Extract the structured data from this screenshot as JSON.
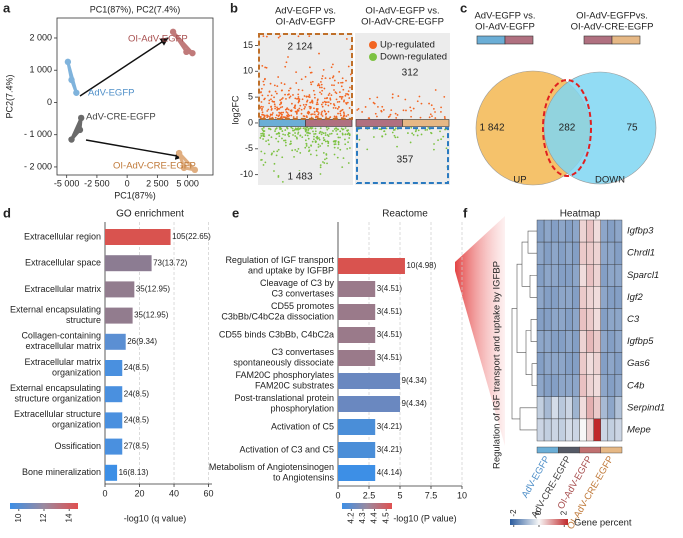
{
  "chart_data": [
    {
      "panel": "a",
      "type": "scatter",
      "title": "PC1(87%), PC2(7.4%)",
      "xlabel": "PC1(87%)",
      "ylabel": "PC2(7.4%)",
      "xlim": [
        -5800,
        7100
      ],
      "ylim": [
        -2250,
        2620
      ],
      "xticks": [
        {
          "value": -5000,
          "label": "-5 000"
        },
        {
          "value": -2500,
          "label": "-2 500"
        },
        0,
        {
          "value": 2500,
          "label": "2 500"
        },
        {
          "value": 5000,
          "label": "5 000"
        }
      ],
      "yticks": [
        {
          "value": -2000,
          "label": "- 2 000"
        },
        {
          "value": -1000,
          "label": "- 1 000"
        },
        0,
        {
          "value": 1000,
          "label": "1 000"
        },
        {
          "value": 2000,
          "label": "2 000"
        }
      ],
      "series": [
        {
          "name": "AdV-EGFP",
          "color": "#7fb3dc",
          "label_color": "#4f8fc8",
          "x": [
            -4900,
            -4600,
            -4200
          ],
          "values": [
            1260,
            700,
            300
          ]
        },
        {
          "name": "OI-AdV-EGFP",
          "color": "#c07a7a",
          "label_color": "#a85050",
          "x": [
            3800,
            4900,
            5400
          ],
          "values": [
            2190,
            1570,
            1530
          ]
        },
        {
          "name": "AdV-CRE-EGFP",
          "color": "#6a6a6a",
          "label_color": "#444444",
          "x": [
            -3800,
            -3900,
            -4600
          ],
          "values": [
            -480,
            -850,
            -1150
          ]
        },
        {
          "name": "OI-AdV-CRE-EGFP",
          "color": "#e0ae80",
          "label_color": "#c07a3a",
          "x": [
            4300,
            4700,
            5600
          ],
          "values": [
            -1570,
            -2030,
            -2090
          ]
        }
      ]
    },
    {
      "panel": "b",
      "type": "volcano",
      "categories": [
        "AdV-EGFP vs.\nOI-AdV-EGFP",
        "OI-AdV-EGFP vs.\nOI-AdV-CRE-EGFP"
      ],
      "ylabel": "log2FC",
      "ylim": [
        -12,
        17.4
      ],
      "yticks": [
        -10,
        -5,
        0,
        5,
        10,
        15
      ],
      "series": [
        {
          "name": "Up-regulated",
          "color": "#f26522",
          "values": [
            2124,
            312
          ],
          "value_labels": [
            "2 124",
            "312"
          ]
        },
        {
          "name": "Down-regulated",
          "color": "#7dc242",
          "values": [
            1483,
            357
          ],
          "value_labels": [
            "1 483",
            "357"
          ]
        }
      ],
      "strip_colors": [
        [
          "#6baed6",
          "#b07080"
        ],
        [
          "#b07080",
          "#e6b885"
        ]
      ]
    },
    {
      "panel": "c",
      "type": "venn",
      "headers": [
        "AdV-EGFP vs.\nOI-AdV-EGFP",
        "OI-AdV-EGFPvs.\nOI-AdV-CRE-EGFP"
      ],
      "header_colors": [
        [
          "#6baed6",
          "#b07080"
        ],
        [
          "#b07080",
          "#e6b885"
        ]
      ],
      "sets": [
        "UP",
        "DOWN"
      ],
      "colors": [
        "#f5c26b",
        "#7fd6f2"
      ],
      "values": [
        1842,
        282,
        75
      ],
      "value_labels": [
        "1 842",
        "282",
        "75"
      ]
    },
    {
      "panel": "d",
      "type": "bar",
      "title": "GO enrichment",
      "xlabel": "-log10 (q value)",
      "categories": [
        "Extracellular region",
        "Extracellular space",
        "Extracellular matrix",
        "External encapsulating\nstructure",
        "Collagen-containing\nextracellular matrix",
        "Extracellular matrix\norganization",
        "External encapsulating\nstructure organization",
        "Extracellular structure\norganization",
        "Ossification",
        "Bone mineralization"
      ],
      "values": [
        38,
        27,
        17,
        16,
        12,
        10,
        10,
        10,
        10,
        7
      ],
      "labels": [
        "105(22.65)",
        "73(13.72)",
        "35(12.95)",
        "35(12.95)",
        "26(9.34)",
        "24(8.5)",
        "24(8.5)",
        "24(8.5)",
        "27(8.5)",
        "16(8.13)"
      ],
      "colors": [
        "#d9534f",
        "#8c7c92",
        "#927c8e",
        "#927c8e",
        "#5b8fd3",
        "#4a90df",
        "#4a90df",
        "#4a90df",
        "#4a90df",
        "#3d8fe6"
      ],
      "xlim": [
        0,
        62
      ],
      "xticks": [
        0,
        20,
        40,
        60
      ],
      "grid": true,
      "colorbar": {
        "lim": [
          9.3,
          14.7
        ],
        "ticks": [
          10,
          12,
          14
        ],
        "colors": [
          "#3d8fe6",
          "#9a8aa0",
          "#e05050"
        ]
      }
    },
    {
      "panel": "e",
      "type": "bar",
      "title": "Reactome",
      "xlabel": "-log10 (P value)",
      "categories": [
        "Regulation of IGF transport\nand uptake by IGFBP",
        "Cleavage of C3 by\nC3 convertases",
        "CD55 promotes\nC3bBb/C4bC2a dissociation",
        "CD55 binds C3bBb, C4bC2a",
        "C3 convertases\nspontaneously dissociate",
        "FAM20C phosphorylates\nFAM20C substrates",
        "Post-translational protein\nphosphorylation",
        "Activation of C5",
        "Activation of C3 and C5",
        "Metabolism of Angiotensinogen\nto Angiotensins"
      ],
      "values": [
        5.4,
        3.0,
        3.0,
        3.0,
        3.0,
        5.0,
        5.0,
        3.0,
        3.0,
        3.0
      ],
      "labels": [
        "10(4.98)",
        "3(4.51)",
        "3(4.51)",
        "3(4.51)",
        "3(4.51)",
        "9(4.34)",
        "9(4.34)",
        "3(4.21)",
        "3(4.21)",
        "4(4.14)"
      ],
      "colors": [
        "#d9534f",
        "#9a7a8a",
        "#9a7a8a",
        "#9a7a8a",
        "#9a7a8a",
        "#6a88c0",
        "#6a88c0",
        "#4a8ed8",
        "#4a8ed8",
        "#3d8fe6"
      ],
      "xlim": [
        0,
        10
      ],
      "xticks": [
        0,
        2.5,
        5,
        7.5,
        10
      ],
      "grid": true,
      "colorbar": {
        "lim": [
          4.12,
          4.55
        ],
        "ticks": [
          4.2,
          4.3,
          4.4,
          4.5
        ],
        "colors": [
          "#3d8fe6",
          "#9a8aa0",
          "#e05050"
        ]
      }
    },
    {
      "panel": "f",
      "type": "heatmap",
      "title": "Heatmap",
      "ylabel": "Regulation of IGF transport and uptake by IGFBP",
      "rows": [
        "Igfbp3",
        "Chrdl1",
        "Sparcl1",
        "Igf2",
        "C3",
        "Igfbp5",
        "Gas6",
        "C4b",
        "Serpind1",
        "Mepe"
      ],
      "groups": [
        "AdV-EGFP",
        "AdV-CRE-EGFP",
        "OI-AdV-EGFP",
        "OI-AdV-CRE-EGFP"
      ],
      "group_colors": [
        "#6baed6",
        "#555a66",
        "#c07070",
        "#e6b885"
      ],
      "group_label_colors": [
        "#4f8fc8",
        "#444444",
        "#a85050",
        "#c07a3a"
      ],
      "values": [
        [
          -1.3,
          -1.2,
          -1.3,
          -1.2,
          -1.3,
          -1.2,
          0.4,
          0.6,
          0.3,
          -1.2,
          -1.3,
          -1.2
        ],
        [
          -1.2,
          -1.3,
          -1.2,
          -1.3,
          -1.2,
          -1.3,
          0.5,
          0.5,
          0.4,
          -1.2,
          -1.2,
          -1.3
        ],
        [
          -1.3,
          -1.2,
          -1.2,
          -1.3,
          -1.3,
          -1.2,
          0.3,
          0.6,
          0.4,
          -1.3,
          -1.2,
          -1.2
        ],
        [
          -1.2,
          -1.3,
          -1.3,
          -1.2,
          -1.2,
          -1.3,
          0.5,
          0.4,
          0.3,
          -1.2,
          -1.3,
          -1.3
        ],
        [
          -1.3,
          -1.3,
          -1.2,
          -1.2,
          -1.3,
          -1.2,
          0.6,
          0.5,
          0.3,
          -1.3,
          -1.2,
          -1.2
        ],
        [
          -1.2,
          -1.2,
          -1.3,
          -1.3,
          -1.2,
          -1.3,
          0.4,
          0.7,
          0.5,
          -1.2,
          -1.3,
          -1.2
        ],
        [
          -1.3,
          -1.2,
          -1.2,
          -1.2,
          -1.3,
          -1.3,
          0.5,
          0.3,
          0.4,
          -1.3,
          -1.2,
          -1.3
        ],
        [
          -1.2,
          -1.3,
          -1.3,
          -1.2,
          -1.2,
          -1.2,
          0.6,
          0.4,
          0.3,
          -1.2,
          -1.3,
          -1.2
        ],
        [
          -0.6,
          -0.9,
          -0.4,
          -0.7,
          -0.5,
          -1.0,
          0.3,
          0.8,
          0.5,
          -0.9,
          -1.2,
          -0.8
        ],
        [
          -0.5,
          -0.6,
          -0.5,
          -0.6,
          -0.4,
          -0.5,
          0.0,
          0.4,
          2.3,
          -0.5,
          -0.6,
          -0.5
        ]
      ],
      "zlim": [
        -2.3,
        2.3
      ],
      "zticks": [
        -2,
        0,
        2
      ],
      "colorbar_label": "Gene percent",
      "colorbar_colors": [
        "#2b5c9e",
        "#f7f7f7",
        "#c0282a"
      ]
    }
  ]
}
